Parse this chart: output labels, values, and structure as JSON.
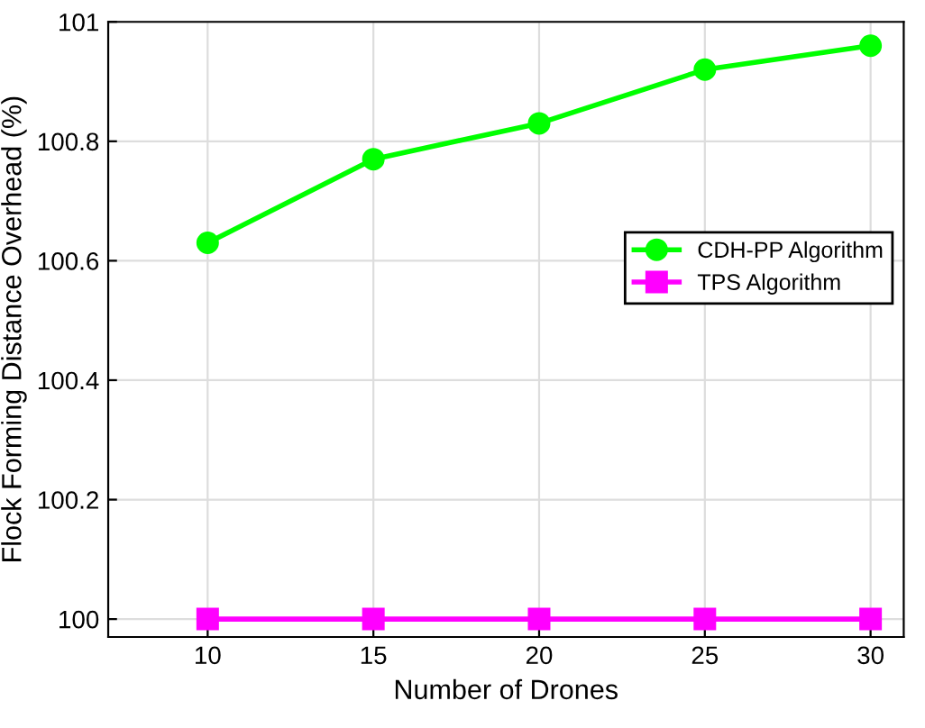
{
  "chart_data": {
    "type": "line",
    "xlabel": "Number of Drones",
    "ylabel": "Flock Forming Distance Overhead (%)",
    "x": [
      10,
      15,
      20,
      25,
      30
    ],
    "series": [
      {
        "name": "CDH-PP Algorithm",
        "color": "#00ff00",
        "marker": "circle",
        "values": [
          100.63,
          100.77,
          100.83,
          100.92,
          100.96
        ]
      },
      {
        "name": "TPS Algorithm",
        "color": "#ff00ff",
        "marker": "square",
        "values": [
          100,
          100,
          100,
          100,
          100
        ]
      }
    ],
    "xlim": [
      7,
      31
    ],
    "xticks": [
      10,
      15,
      20,
      25,
      30
    ],
    "ylim": [
      99.97,
      101
    ],
    "yticks": [
      100,
      100.2,
      100.4,
      100.6,
      100.8,
      101
    ],
    "grid": true,
    "legend": "right",
    "line_style": "solid"
  }
}
